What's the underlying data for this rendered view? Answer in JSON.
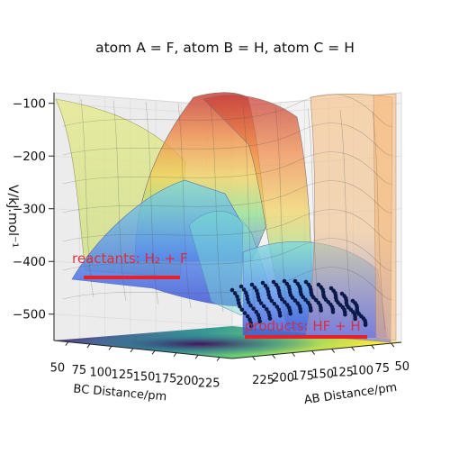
{
  "chart_data": {
    "type": "surface-3d",
    "title": "atom A = F, atom B = H, atom C = H",
    "zlabel": "V/kJ.mol⁻¹",
    "xlabel": "BC Distance/pm",
    "ylabel": "AB Distance/pm",
    "z_ticks": [
      -100,
      -200,
      -300,
      -400,
      -500
    ],
    "bc_ticks": [
      50,
      75,
      100,
      125,
      150,
      175,
      200,
      225
    ],
    "ab_ticks": [
      225,
      200,
      175,
      150,
      125,
      100,
      75,
      50
    ],
    "annotations": [
      {
        "text": "reactants: H₂ + F",
        "color": "#e8202a"
      },
      {
        "text": "products: HF + H",
        "color": "#e8202a"
      }
    ],
    "colormap": "jet",
    "grid": true
  }
}
